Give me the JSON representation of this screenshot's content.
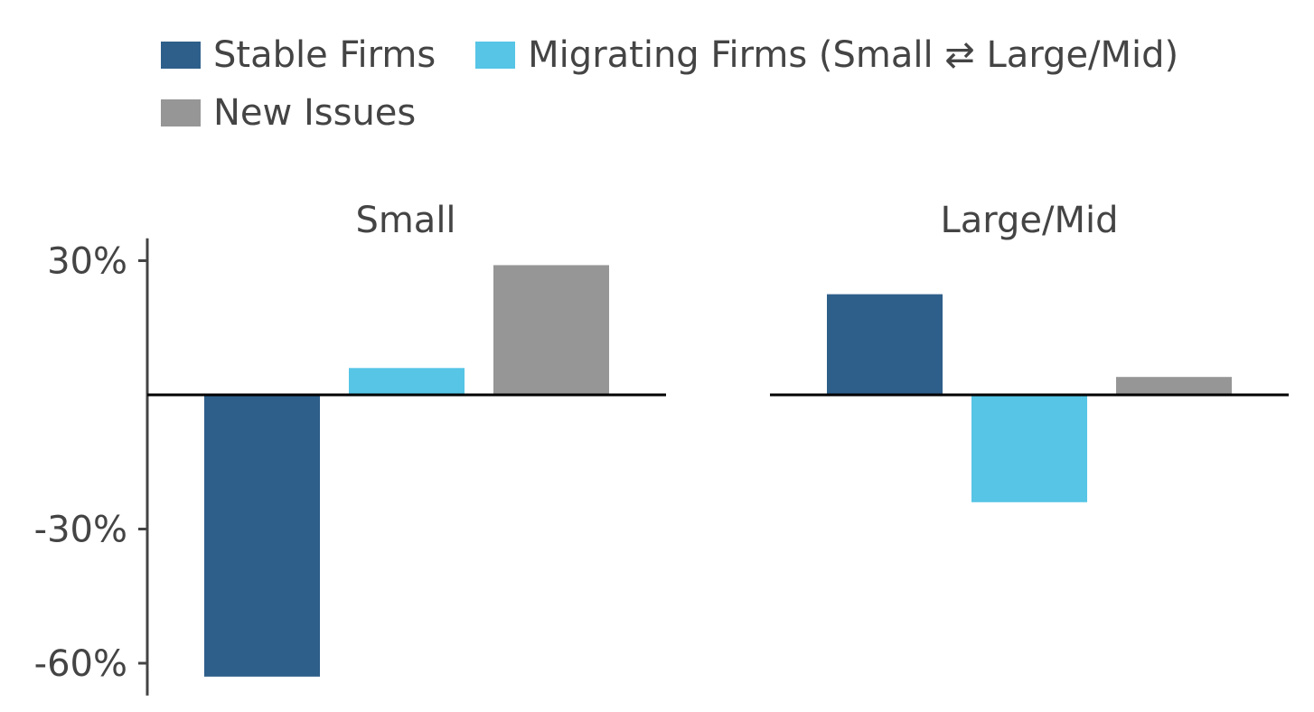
{
  "chart_data": {
    "type": "bar",
    "legend": {
      "placement": "top-left",
      "items": [
        {
          "label": "Stable Firms",
          "color": "#2e5f8a"
        },
        {
          "label": "Migrating Firms (Small ⇄ Large/Mid)",
          "color": "#56c5e6"
        },
        {
          "label": "New Issues",
          "color": "#969696"
        }
      ]
    },
    "y_axis": {
      "ticks": [
        30,
        -30,
        -60
      ],
      "tick_labels": [
        "30%",
        "-30%",
        "-60%"
      ],
      "ylim": [
        -66,
        35
      ]
    },
    "grid": false,
    "panels": [
      {
        "title": "Small",
        "series_values": [
          -63,
          6,
          29
        ]
      },
      {
        "title": "Large/Mid",
        "series_values": [
          22.5,
          -24,
          4
        ]
      }
    ]
  }
}
